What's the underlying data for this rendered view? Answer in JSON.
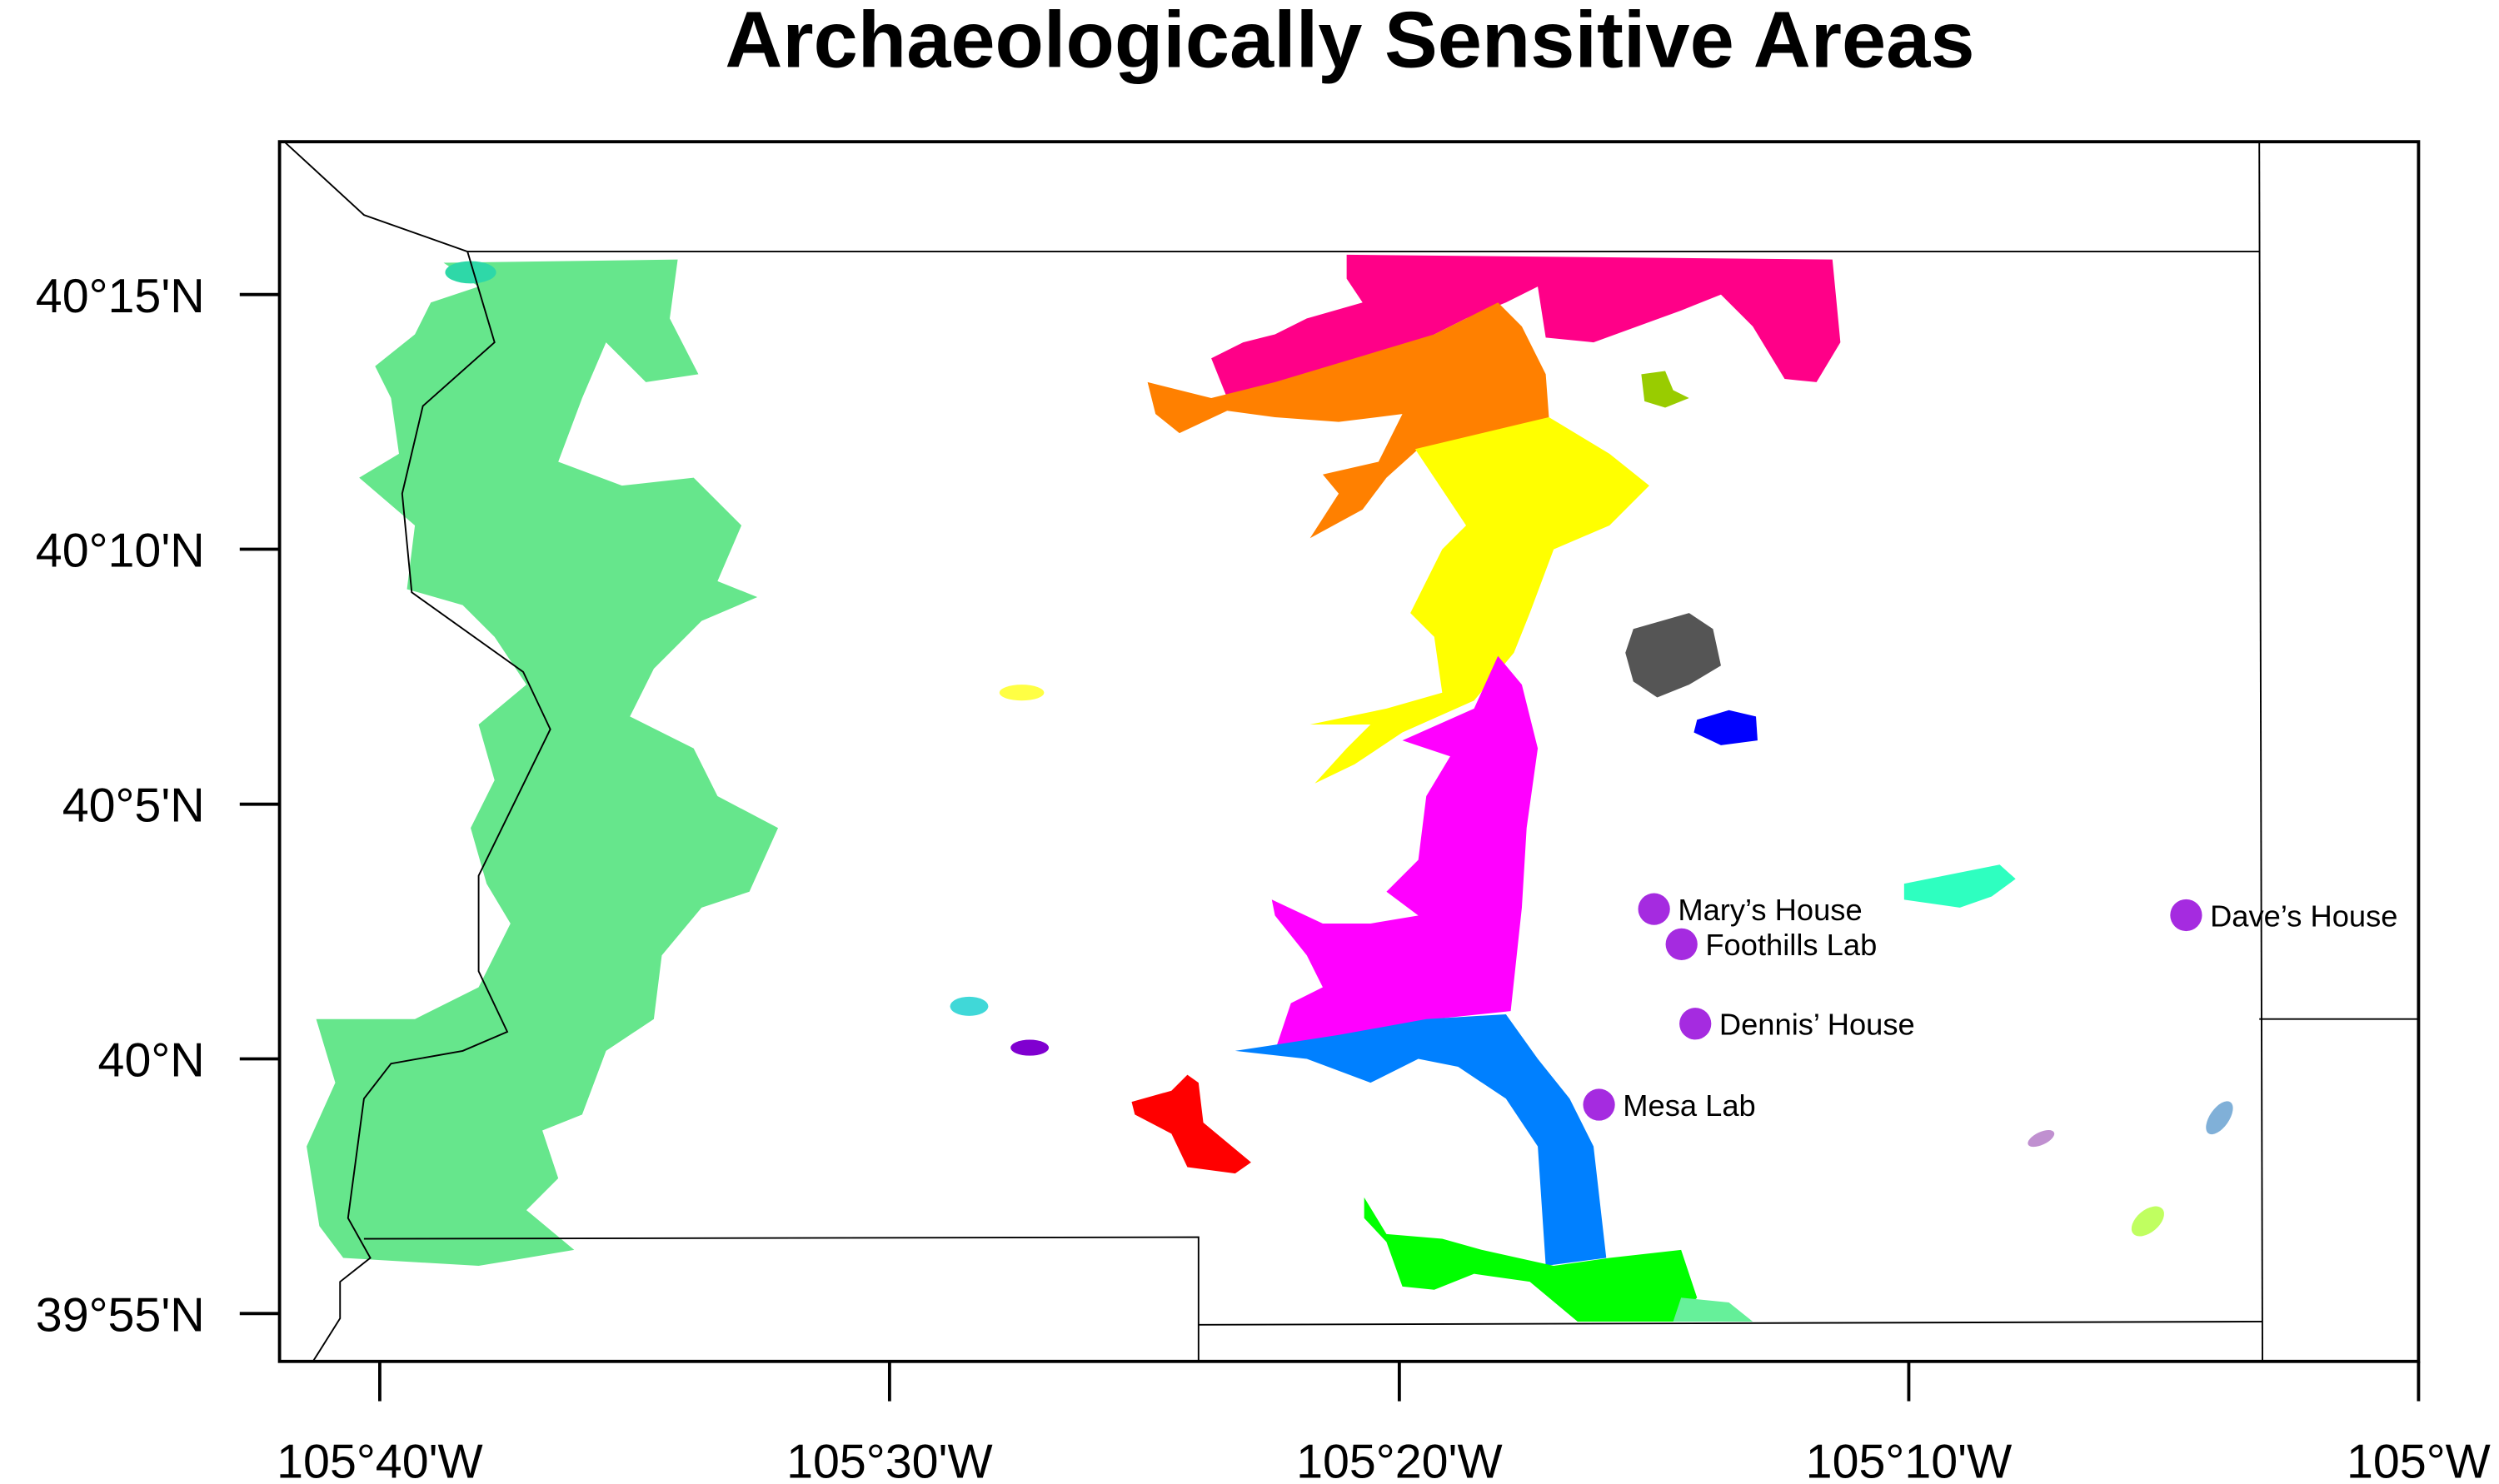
{
  "title": "Archaeologically Sensitive Areas",
  "map": {
    "lon_range": [
      -105.7,
      -105.0
    ],
    "lat_range": [
      39.901,
      40.3
    ],
    "x_ticks": [
      {
        "value": -105.6667,
        "label": "105°40'W"
      },
      {
        "value": -105.5,
        "label": "105°30'W"
      },
      {
        "value": -105.3333,
        "label": "105°20'W"
      },
      {
        "value": -105.1667,
        "label": "105°10'W"
      },
      {
        "value": -105.0,
        "label": "105°W"
      }
    ],
    "y_ticks": [
      {
        "value": 40.25,
        "label": "40°15'N"
      },
      {
        "value": 40.1667,
        "label": "40°10'N"
      },
      {
        "value": 40.0833,
        "label": "40°5'N"
      },
      {
        "value": 40.0,
        "label": "40°N"
      },
      {
        "value": 39.9167,
        "label": "39°55'N"
      }
    ],
    "marker_color": "#a52be0",
    "locations": [
      {
        "name": "Mary’s House",
        "lon": -105.25,
        "lat": 40.049
      },
      {
        "name": "Foothills Lab",
        "lon": -105.241,
        "lat": 40.0375
      },
      {
        "name": "Dennis’ House",
        "lon": -105.2365,
        "lat": 40.0115
      },
      {
        "name": "Mesa Lab",
        "lon": -105.268,
        "lat": 39.985
      },
      {
        "name": "Dave’s House",
        "lon": -105.076,
        "lat": 40.047
      }
    ],
    "region_colors": [
      "#66e68c",
      "#ff0088",
      "#ff8000",
      "#ffff00",
      "#ff00ff",
      "#0080ff",
      "#00ff00",
      "#66f09a",
      "#555555",
      "#0000ff",
      "#2effc0",
      "#ff0000",
      "#40d8d8",
      "#8000d0",
      "#ffff44",
      "#99cc00",
      "#c090d0",
      "#80b0d8",
      "#c0ff60"
    ]
  }
}
